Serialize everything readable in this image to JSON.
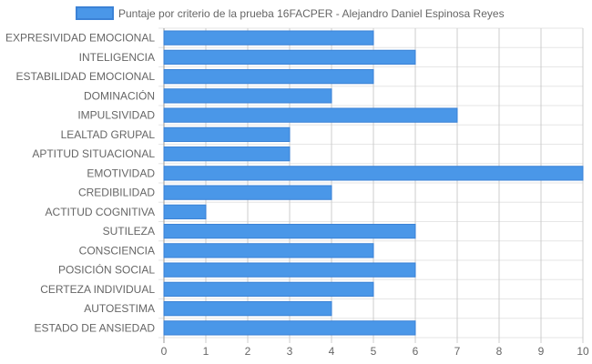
{
  "chart_data": {
    "type": "bar",
    "orientation": "horizontal",
    "categories": [
      "EXPRESIVIDAD EMOCIONAL",
      "INTELIGENCIA",
      "ESTABILIDAD EMOCIONAL",
      "DOMINACIÓN",
      "IMPULSIVIDAD",
      "LEALTAD GRUPAL",
      "APTITUD SITUACIONAL",
      "EMOTIVIDAD",
      "CREDIBILIDAD",
      "ACTITUD COGNITIVA",
      "SUTILEZA",
      "CONSCIENCIA",
      "POSICIÓN SOCIAL",
      "CERTEZA INDIVIDUAL",
      "AUTOESTIMA",
      "ESTADO DE ANSIEDAD"
    ],
    "series": [
      {
        "name": "Puntaje por criterio de la prueba 16FACPER - Alejandro Daniel Espinosa Reyes",
        "values": [
          5,
          6,
          5,
          4,
          7,
          3,
          3,
          10,
          4,
          1,
          6,
          5,
          6,
          5,
          4,
          6
        ],
        "color": "#4a97e8",
        "border_color": "#3b82d6"
      }
    ],
    "xlim": [
      0,
      10
    ],
    "x_ticks": [
      "0",
      "1",
      "2",
      "3",
      "4",
      "5",
      "6",
      "7",
      "8",
      "9",
      "10"
    ],
    "grid": true,
    "legend_position": "top"
  }
}
